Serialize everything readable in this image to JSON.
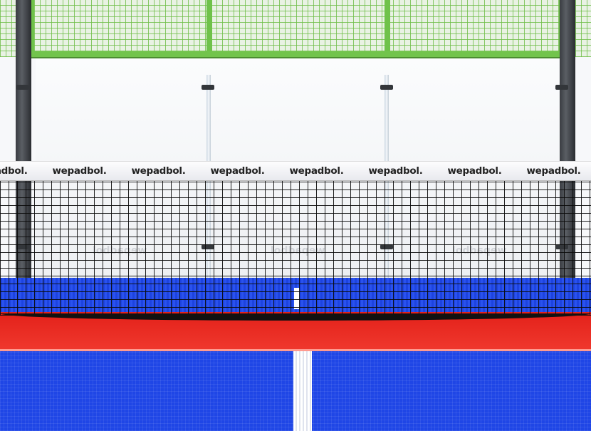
{
  "scene": {
    "subject": "padel court with net and glass back wall",
    "colors": {
      "fence": "#6fc24a",
      "floor_blue": "#1f46e6",
      "floor_red": "#e3211a",
      "net": "#111111"
    }
  },
  "band": {
    "logos": [
      "wepadbol.",
      "wepadbol.",
      "wepadbol.",
      "wepadbol.",
      "wepadbol.",
      "wepadbol.",
      "wepadbol.",
      "wepadbol."
    ]
  },
  "back_wall": {
    "logos": [
      "wepadbol",
      "wepadbol",
      "wepadbol"
    ]
  }
}
